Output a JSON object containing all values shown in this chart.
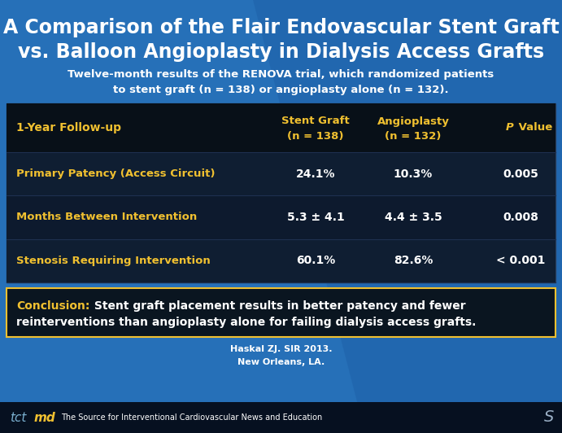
{
  "title_line1": "A Comparison of the Flair Endovascular Stent Graft",
  "title_line2": "vs. Balloon Angioplasty in Dialysis Access Grafts",
  "subtitle_line1": "Twelve-month results of the RENOVA trial, which randomized patients",
  "subtitle_line2": "to stent graft (n = 138) or angioplasty alone (n = 132).",
  "bg_blue": "#2670b8",
  "bg_dark_blue": "#1a55a0",
  "table_bg": "#0a1520",
  "header_bg": "#0a1520",
  "row_bg_even": "#0f1e32",
  "row_bg_odd": "#0d1a2e",
  "conclusion_bg": "#0a1520",
  "footer_bg": "#061020",
  "yellow": "#f0c030",
  "white": "#ffffff",
  "light_white": "#e8e8e8",
  "header_col0": "1-Year Follow-up",
  "header_col1_line1": "Stent Graft",
  "header_col1_line2": "(n = 138)",
  "header_col2_line1": "Angioplasty",
  "header_col2_line2": "(n = 132)",
  "header_col3": "P Value",
  "rows": [
    {
      "label": "Primary Patency (Access Circuit)",
      "stent": "24.1%",
      "angio": "10.3%",
      "pval": "0.005"
    },
    {
      "label": "Months Between Intervention",
      "stent": "5.3 ± 4.1",
      "angio": "4.4 ± 3.5",
      "pval": "0.008"
    },
    {
      "label": "Stenosis Requiring Intervention",
      "stent": "60.1%",
      "angio": "82.6%",
      "pval": "< 0.001"
    }
  ],
  "conclusion_label": "Conclusion:",
  "conclusion_rest": " Stent graft placement results in better patency and fewer",
  "conclusion_line2": "reinterventions than angioplasty alone for failing dialysis access grafts.",
  "citation_line1": "Haskal ZJ. SIR 2013.",
  "citation_line2": "New Orleans, LA.",
  "footer_text": "The Source for Interventional Cardiovascular News and Education",
  "tct_color": "#7ab0d0",
  "md_color": "#f0c030"
}
